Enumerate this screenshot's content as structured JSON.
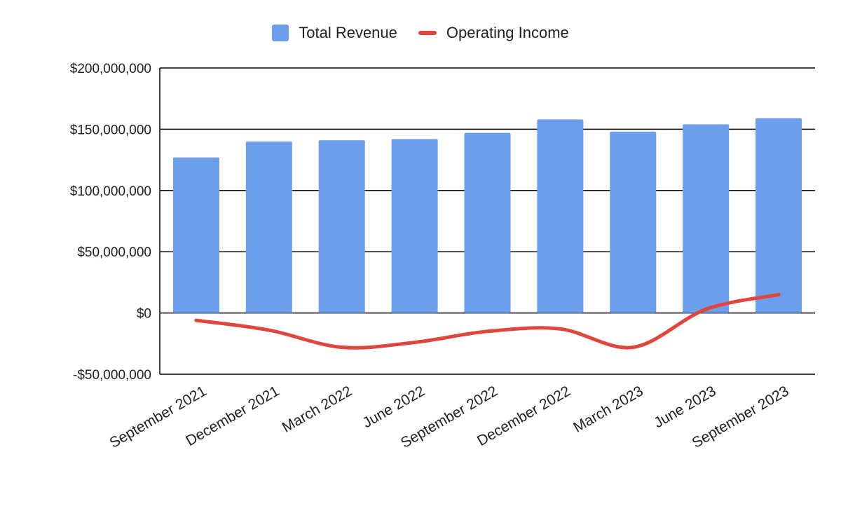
{
  "chart_data": {
    "type": "bar",
    "categories": [
      "September 2021",
      "December 2021",
      "March 2022",
      "June 2022",
      "September 2022",
      "December 2022",
      "March 2023",
      "June 2023",
      "September 2023"
    ],
    "series": [
      {
        "name": "Total Revenue",
        "type": "bar",
        "color": "#6d9eeb",
        "values": [
          127000000,
          140000000,
          141000000,
          142000000,
          147000000,
          158000000,
          148000000,
          154000000,
          159000000
        ]
      },
      {
        "name": "Operating Income",
        "type": "line",
        "color": "#e0463c",
        "smooth": true,
        "values": [
          -6000000,
          -14000000,
          -28000000,
          -24000000,
          -15000000,
          -13000000,
          -28000000,
          3000000,
          15000000
        ]
      }
    ],
    "ylim": [
      -50000000,
      200000000
    ],
    "yticks": [
      -50000000,
      0,
      50000000,
      100000000,
      150000000,
      200000000
    ],
    "ytick_labels": [
      "-$50,000,000",
      "$0",
      "$50,000,000",
      "$100,000,000",
      "$150,000,000",
      "$200,000,000"
    ],
    "grid": true,
    "legend_position": "top-center",
    "title": "",
    "xlabel": "",
    "ylabel": ""
  }
}
